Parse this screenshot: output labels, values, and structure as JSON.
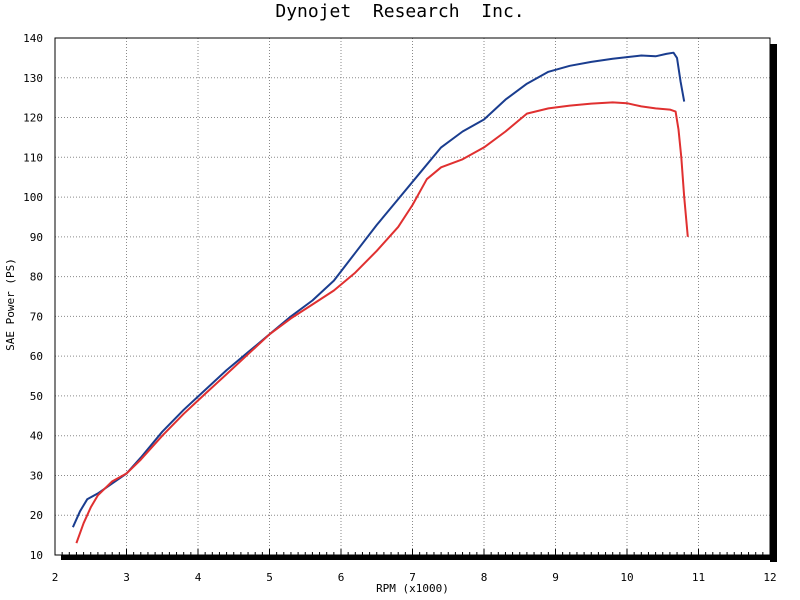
{
  "chart_data": {
    "type": "line",
    "title": "Dynojet  Research  Inc.",
    "xlabel": "RPM (x1000)",
    "ylabel": "SAE Power (PS)",
    "xlim": [
      2,
      12
    ],
    "ylim": [
      10,
      140
    ],
    "xticks": [
      2,
      3,
      4,
      5,
      6,
      7,
      8,
      9,
      10,
      11,
      12
    ],
    "yticks": [
      10,
      20,
      30,
      40,
      50,
      60,
      70,
      80,
      90,
      100,
      110,
      120,
      130,
      140
    ],
    "grid": true,
    "series": [
      {
        "color": "#1a3d8f",
        "x": [
          2.25,
          2.35,
          2.45,
          2.6,
          2.8,
          3.0,
          3.2,
          3.5,
          3.8,
          4.1,
          4.4,
          4.7,
          5.0,
          5.3,
          5.6,
          5.9,
          6.2,
          6.5,
          6.8,
          7.1,
          7.4,
          7.7,
          8.0,
          8.3,
          8.6,
          8.9,
          9.2,
          9.5,
          9.8,
          10.0,
          10.2,
          10.4,
          10.55,
          10.65,
          10.7,
          10.75,
          10.8
        ],
        "y": [
          17,
          21,
          24,
          25.5,
          28,
          30.5,
          34.5,
          41,
          46.5,
          51.5,
          56.5,
          61,
          65.5,
          70,
          74,
          79,
          86,
          93,
          99.5,
          106,
          112.5,
          116.5,
          119.5,
          124.5,
          128.5,
          131.5,
          133,
          134,
          134.8,
          135.2,
          135.6,
          135.4,
          136,
          136.3,
          135,
          129,
          124
        ]
      },
      {
        "color": "#e03030",
        "x": [
          2.3,
          2.4,
          2.5,
          2.6,
          2.8,
          3.0,
          3.2,
          3.5,
          3.8,
          4.1,
          4.4,
          4.7,
          5.0,
          5.3,
          5.6,
          5.9,
          6.2,
          6.5,
          6.8,
          7.0,
          7.2,
          7.4,
          7.7,
          8.0,
          8.3,
          8.6,
          8.9,
          9.2,
          9.5,
          9.8,
          10.0,
          10.2,
          10.4,
          10.6,
          10.68,
          10.72,
          10.76,
          10.8,
          10.85
        ],
        "y": [
          13,
          18,
          22,
          25,
          28.5,
          30.5,
          34,
          40,
          45.5,
          50.5,
          55.5,
          60.5,
          65.5,
          69.5,
          73,
          76.5,
          81,
          86.5,
          92.5,
          98,
          104.5,
          107.5,
          109.5,
          112.5,
          116.5,
          121,
          122.3,
          123,
          123.5,
          123.8,
          123.6,
          122.8,
          122.3,
          122,
          121.5,
          117,
          110,
          100,
          90
        ]
      }
    ]
  }
}
